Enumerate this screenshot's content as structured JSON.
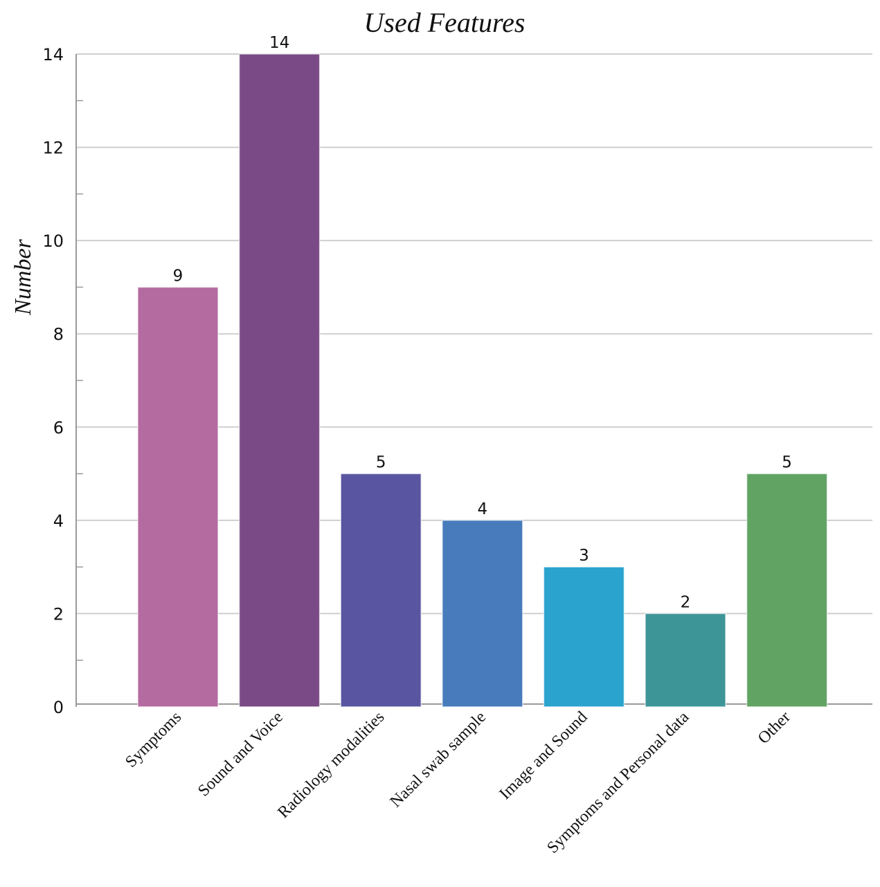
{
  "chart_data": {
    "type": "bar",
    "title": "Used Features",
    "xlabel": "",
    "ylabel": "Number",
    "ylim": [
      0,
      14
    ],
    "yticks": [
      0,
      2,
      4,
      6,
      8,
      10,
      12,
      14
    ],
    "grid": true,
    "categories": [
      "Symptoms",
      "Sound and Voice",
      "Radiology modalities",
      "Nasal swab sample",
      "Image and Sound",
      "Symptoms and Personal data",
      "Other"
    ],
    "values": [
      9,
      14,
      5,
      4,
      3,
      2,
      5
    ],
    "colors": [
      "#b46ba0",
      "#794a85",
      "#5955a1",
      "#477bbc",
      "#2aa3cf",
      "#3e9597",
      "#61a362"
    ]
  }
}
